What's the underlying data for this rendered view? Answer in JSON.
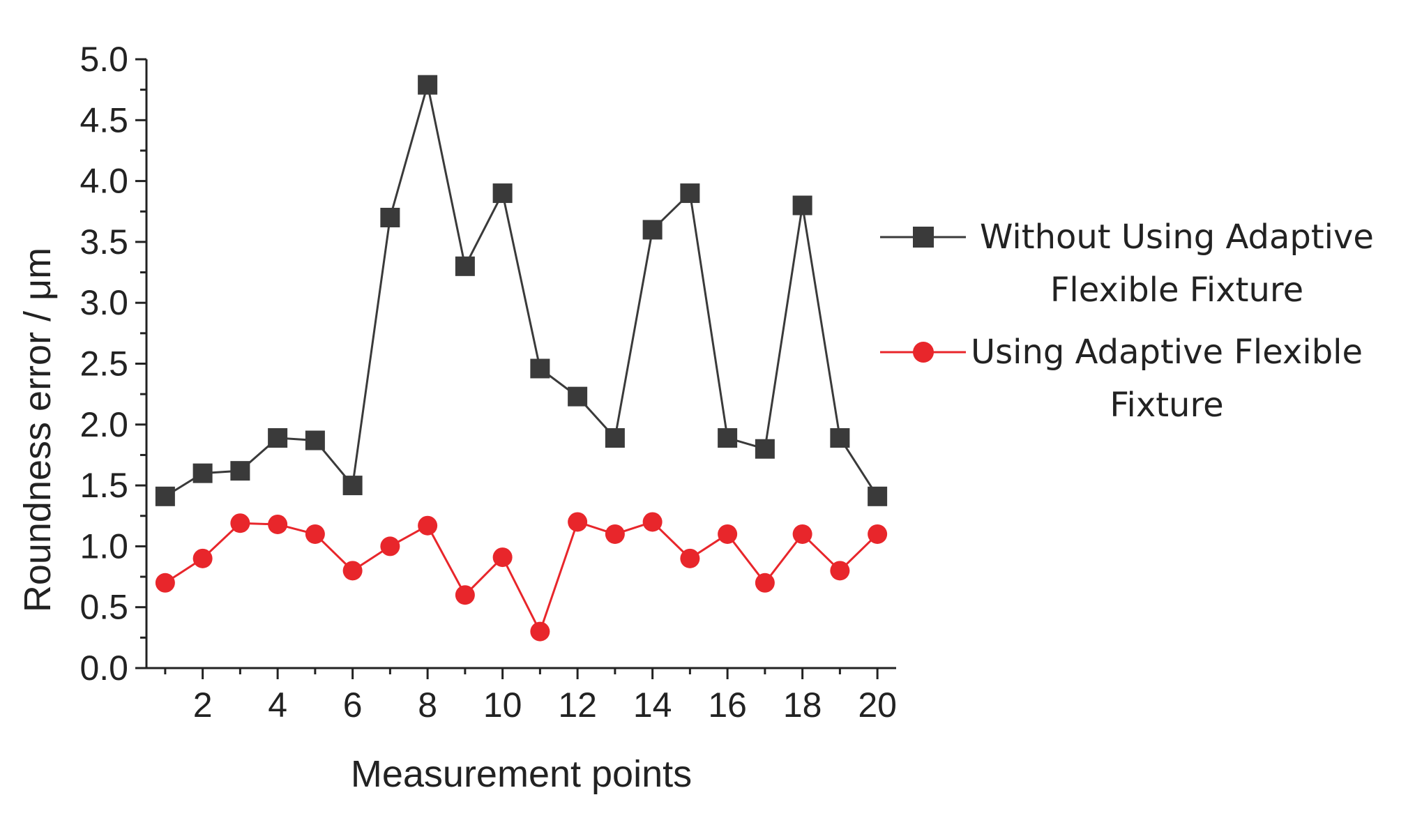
{
  "chart_data": {
    "type": "line",
    "title": "",
    "xlabel": "Measurement points",
    "ylabel": "Roundness error / μm",
    "x": [
      1,
      2,
      3,
      4,
      5,
      6,
      7,
      8,
      9,
      10,
      11,
      12,
      13,
      14,
      15,
      16,
      17,
      18,
      19,
      20
    ],
    "xlim": [
      0.5,
      20.5
    ],
    "ylim": [
      0.0,
      5.0
    ],
    "x_ticks": [
      2,
      4,
      6,
      8,
      10,
      12,
      14,
      16,
      18,
      20
    ],
    "x_tick_labels": [
      "2",
      "4",
      "6",
      "8",
      "10",
      "12",
      "14",
      "16",
      "18",
      "20"
    ],
    "y_ticks": [
      0.0,
      0.5,
      1.0,
      1.5,
      2.0,
      2.5,
      3.0,
      3.5,
      4.0,
      4.5,
      5.0
    ],
    "y_tick_labels": [
      "0.0",
      "0.5",
      "1.0",
      "1.5",
      "2.0",
      "2.5",
      "3.0",
      "3.5",
      "4.0",
      "4.5",
      "5.0"
    ],
    "grid": false,
    "legend_position": "right",
    "series": [
      {
        "name": "Without Using Adaptive Flexible Fixture",
        "legend_lines": [
          "Without Using Adaptive",
          "Flexible Fixture"
        ],
        "marker": "square",
        "color": "#3a3a3a",
        "values": [
          1.41,
          1.6,
          1.62,
          1.89,
          1.87,
          1.5,
          3.7,
          4.79,
          3.3,
          3.9,
          2.46,
          2.23,
          1.89,
          3.6,
          3.9,
          1.89,
          1.8,
          3.8,
          1.89,
          1.41
        ]
      },
      {
        "name": "Using Adaptive Flexible Fixture",
        "legend_lines": [
          "Using Adaptive Flexible",
          "Fixture"
        ],
        "marker": "circle",
        "color": "#e8262b",
        "values": [
          0.7,
          0.9,
          1.19,
          1.18,
          1.1,
          0.8,
          1.0,
          1.17,
          0.6,
          0.91,
          0.3,
          1.2,
          1.1,
          1.2,
          0.9,
          1.1,
          0.7,
          1.1,
          0.8,
          1.1
        ]
      }
    ]
  }
}
